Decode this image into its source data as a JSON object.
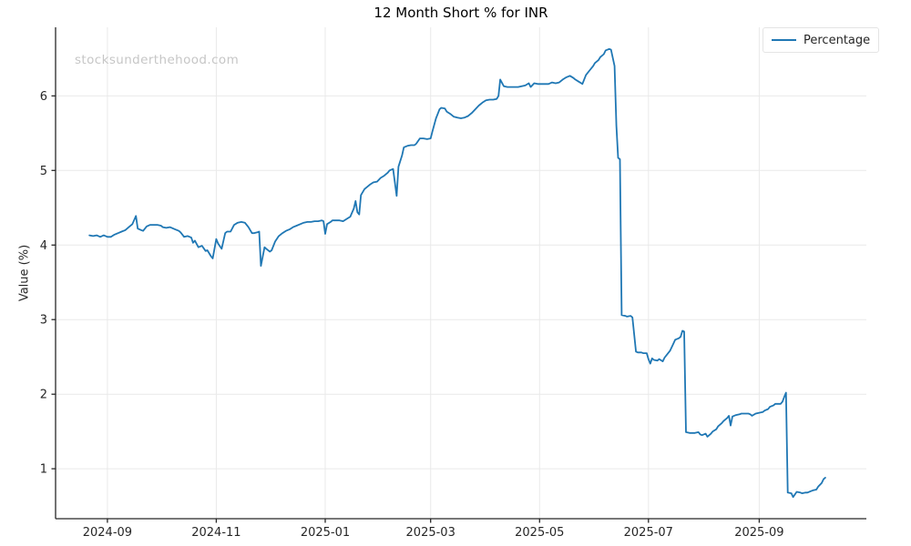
{
  "header": {
    "title": "12 Month Short % for INR"
  },
  "watermark": {
    "text": "stocksunderthehood.com"
  },
  "legend": {
    "items": [
      {
        "label": "Percentage",
        "color": "#1f77b4",
        "marker": "line"
      }
    ]
  },
  "chart_data": {
    "type": "line",
    "title": "12 Month Short % for INR",
    "xlabel": "",
    "ylabel": "Value (%)",
    "grid": true,
    "legend_position": "upper right",
    "x_domain": [
      "2024-08-03",
      "2025-10-31"
    ],
    "y_domain": [
      0.33,
      6.92
    ],
    "x_ticks": [
      {
        "date": "2024-09-01",
        "label": "2024-09"
      },
      {
        "date": "2024-11-01",
        "label": "2024-11"
      },
      {
        "date": "2025-01-01",
        "label": "2025-01"
      },
      {
        "date": "2025-03-01",
        "label": "2025-03"
      },
      {
        "date": "2025-05-01",
        "label": "2025-05"
      },
      {
        "date": "2025-07-01",
        "label": "2025-07"
      },
      {
        "date": "2025-09-01",
        "label": "2025-09"
      }
    ],
    "y_ticks": [
      1,
      2,
      3,
      4,
      5,
      6
    ],
    "colors": {
      "line": "#1f77b4",
      "grid": "#e9e9e9",
      "axis": "#262626",
      "tick_text": "#262626"
    },
    "series": [
      {
        "name": "Percentage",
        "color": "#1f77b4",
        "points": [
          [
            "2024-08-22",
            4.13
          ],
          [
            "2024-08-24",
            4.12
          ],
          [
            "2024-08-26",
            4.13
          ],
          [
            "2024-08-28",
            4.11
          ],
          [
            "2024-08-30",
            4.13
          ],
          [
            "2024-09-01",
            4.11
          ],
          [
            "2024-09-03",
            4.11
          ],
          [
            "2024-09-05",
            4.14
          ],
          [
            "2024-09-07",
            4.16
          ],
          [
            "2024-09-09",
            4.18
          ],
          [
            "2024-09-11",
            4.2
          ],
          [
            "2024-09-13",
            4.24
          ],
          [
            "2024-09-15",
            4.28
          ],
          [
            "2024-09-17",
            4.39
          ],
          [
            "2024-09-18",
            4.22
          ],
          [
            "2024-09-20",
            4.2
          ],
          [
            "2024-09-21",
            4.19
          ],
          [
            "2024-09-23",
            4.25
          ],
          [
            "2024-09-25",
            4.27
          ],
          [
            "2024-09-27",
            4.27
          ],
          [
            "2024-09-29",
            4.27
          ],
          [
            "2024-10-01",
            4.26
          ],
          [
            "2024-10-02",
            4.24
          ],
          [
            "2024-10-04",
            4.23
          ],
          [
            "2024-10-06",
            4.24
          ],
          [
            "2024-10-09",
            4.21
          ],
          [
            "2024-10-11",
            4.19
          ],
          [
            "2024-10-12",
            4.17
          ],
          [
            "2024-10-14",
            4.11
          ],
          [
            "2024-10-16",
            4.12
          ],
          [
            "2024-10-18",
            4.1
          ],
          [
            "2024-10-19",
            4.03
          ],
          [
            "2024-10-20",
            4.06
          ],
          [
            "2024-10-22",
            3.97
          ],
          [
            "2024-10-24",
            3.99
          ],
          [
            "2024-10-26",
            3.92
          ],
          [
            "2024-10-27",
            3.93
          ],
          [
            "2024-10-29",
            3.85
          ],
          [
            "2024-10-30",
            3.82
          ],
          [
            "2024-11-01",
            4.08
          ],
          [
            "2024-11-02",
            4.02
          ],
          [
            "2024-11-04",
            3.95
          ],
          [
            "2024-11-06",
            4.16
          ],
          [
            "2024-11-07",
            4.18
          ],
          [
            "2024-11-09",
            4.18
          ],
          [
            "2024-11-11",
            4.27
          ],
          [
            "2024-11-13",
            4.3
          ],
          [
            "2024-11-15",
            4.31
          ],
          [
            "2024-11-17",
            4.3
          ],
          [
            "2024-11-19",
            4.24
          ],
          [
            "2024-11-21",
            4.16
          ],
          [
            "2024-11-22",
            4.16
          ],
          [
            "2024-11-24",
            4.17
          ],
          [
            "2024-11-25",
            4.18
          ],
          [
            "2024-11-26",
            3.72
          ],
          [
            "2024-11-28",
            3.97
          ],
          [
            "2024-11-29",
            3.95
          ],
          [
            "2024-12-01",
            3.91
          ],
          [
            "2024-12-02",
            3.93
          ],
          [
            "2024-12-04",
            4.05
          ],
          [
            "2024-12-06",
            4.12
          ],
          [
            "2024-12-08",
            4.16
          ],
          [
            "2024-12-10",
            4.19
          ],
          [
            "2024-12-12",
            4.21
          ],
          [
            "2024-12-14",
            4.24
          ],
          [
            "2024-12-16",
            4.26
          ],
          [
            "2024-12-18",
            4.28
          ],
          [
            "2024-12-20",
            4.3
          ],
          [
            "2024-12-22",
            4.31
          ],
          [
            "2024-12-24",
            4.31
          ],
          [
            "2024-12-26",
            4.32
          ],
          [
            "2024-12-28",
            4.32
          ],
          [
            "2024-12-30",
            4.33
          ],
          [
            "2024-12-31",
            4.32
          ],
          [
            "2025-01-01",
            4.15
          ],
          [
            "2025-01-02",
            4.28
          ],
          [
            "2025-01-04",
            4.31
          ],
          [
            "2025-01-05",
            4.33
          ],
          [
            "2025-01-07",
            4.33
          ],
          [
            "2025-01-09",
            4.33
          ],
          [
            "2025-01-11",
            4.32
          ],
          [
            "2025-01-13",
            4.35
          ],
          [
            "2025-01-15",
            4.38
          ],
          [
            "2025-01-17",
            4.49
          ],
          [
            "2025-01-18",
            4.59
          ],
          [
            "2025-01-19",
            4.44
          ],
          [
            "2025-01-20",
            4.41
          ],
          [
            "2025-01-21",
            4.67
          ],
          [
            "2025-01-23",
            4.75
          ],
          [
            "2025-01-26",
            4.81
          ],
          [
            "2025-01-28",
            4.84
          ],
          [
            "2025-01-30",
            4.85
          ],
          [
            "2025-02-01",
            4.9
          ],
          [
            "2025-02-03",
            4.93
          ],
          [
            "2025-02-05",
            4.97
          ],
          [
            "2025-02-06",
            5.0
          ],
          [
            "2025-02-08",
            5.02
          ],
          [
            "2025-02-10",
            4.66
          ],
          [
            "2025-02-11",
            5.05
          ],
          [
            "2025-02-13",
            5.2
          ],
          [
            "2025-02-14",
            5.31
          ],
          [
            "2025-02-16",
            5.33
          ],
          [
            "2025-02-18",
            5.34
          ],
          [
            "2025-02-20",
            5.34
          ],
          [
            "2025-02-21",
            5.36
          ],
          [
            "2025-02-23",
            5.43
          ],
          [
            "2025-02-25",
            5.43
          ],
          [
            "2025-02-27",
            5.42
          ],
          [
            "2025-03-01",
            5.43
          ],
          [
            "2025-03-02",
            5.52
          ],
          [
            "2025-03-04",
            5.7
          ],
          [
            "2025-03-06",
            5.82
          ],
          [
            "2025-03-07",
            5.84
          ],
          [
            "2025-03-09",
            5.83
          ],
          [
            "2025-03-10",
            5.79
          ],
          [
            "2025-03-12",
            5.76
          ],
          [
            "2025-03-14",
            5.72
          ],
          [
            "2025-03-16",
            5.71
          ],
          [
            "2025-03-18",
            5.7
          ],
          [
            "2025-03-20",
            5.71
          ],
          [
            "2025-03-22",
            5.73
          ],
          [
            "2025-03-24",
            5.77
          ],
          [
            "2025-03-26",
            5.82
          ],
          [
            "2025-03-28",
            5.87
          ],
          [
            "2025-03-30",
            5.91
          ],
          [
            "2025-04-01",
            5.94
          ],
          [
            "2025-04-03",
            5.95
          ],
          [
            "2025-04-05",
            5.95
          ],
          [
            "2025-04-07",
            5.96
          ],
          [
            "2025-04-08",
            6.0
          ],
          [
            "2025-04-09",
            6.22
          ],
          [
            "2025-04-11",
            6.13
          ],
          [
            "2025-04-13",
            6.12
          ],
          [
            "2025-04-15",
            6.12
          ],
          [
            "2025-04-17",
            6.12
          ],
          [
            "2025-04-19",
            6.12
          ],
          [
            "2025-04-21",
            6.13
          ],
          [
            "2025-04-23",
            6.14
          ],
          [
            "2025-04-25",
            6.17
          ],
          [
            "2025-04-26",
            6.12
          ],
          [
            "2025-04-28",
            6.17
          ],
          [
            "2025-04-30",
            6.16
          ],
          [
            "2025-05-02",
            6.16
          ],
          [
            "2025-05-04",
            6.16
          ],
          [
            "2025-05-06",
            6.16
          ],
          [
            "2025-05-08",
            6.18
          ],
          [
            "2025-05-10",
            6.17
          ],
          [
            "2025-05-12",
            6.18
          ],
          [
            "2025-05-14",
            6.22
          ],
          [
            "2025-05-16",
            6.25
          ],
          [
            "2025-05-18",
            6.27
          ],
          [
            "2025-05-20",
            6.24
          ],
          [
            "2025-05-21",
            6.22
          ],
          [
            "2025-05-23",
            6.19
          ],
          [
            "2025-05-25",
            6.16
          ],
          [
            "2025-05-27",
            6.28
          ],
          [
            "2025-05-29",
            6.34
          ],
          [
            "2025-05-31",
            6.4
          ],
          [
            "2025-06-01",
            6.44
          ],
          [
            "2025-06-03",
            6.48
          ],
          [
            "2025-06-04",
            6.52
          ],
          [
            "2025-06-06",
            6.56
          ],
          [
            "2025-06-07",
            6.61
          ],
          [
            "2025-06-09",
            6.63
          ],
          [
            "2025-06-10",
            6.62
          ],
          [
            "2025-06-12",
            6.4
          ],
          [
            "2025-06-13",
            5.6
          ],
          [
            "2025-06-14",
            5.17
          ],
          [
            "2025-06-15",
            5.15
          ],
          [
            "2025-06-16",
            3.06
          ],
          [
            "2025-06-18",
            3.05
          ],
          [
            "2025-06-19",
            3.04
          ],
          [
            "2025-06-21",
            3.05
          ],
          [
            "2025-06-22",
            3.03
          ],
          [
            "2025-06-24",
            2.57
          ],
          [
            "2025-06-25",
            2.56
          ],
          [
            "2025-06-27",
            2.56
          ],
          [
            "2025-06-28",
            2.55
          ],
          [
            "2025-06-30",
            2.55
          ],
          [
            "2025-07-01",
            2.47
          ],
          [
            "2025-07-02",
            2.41
          ],
          [
            "2025-07-03",
            2.48
          ],
          [
            "2025-07-04",
            2.46
          ],
          [
            "2025-07-06",
            2.45
          ],
          [
            "2025-07-07",
            2.47
          ],
          [
            "2025-07-09",
            2.44
          ],
          [
            "2025-07-10",
            2.49
          ],
          [
            "2025-07-12",
            2.55
          ],
          [
            "2025-07-13",
            2.58
          ],
          [
            "2025-07-15",
            2.68
          ],
          [
            "2025-07-16",
            2.73
          ],
          [
            "2025-07-18",
            2.75
          ],
          [
            "2025-07-19",
            2.77
          ],
          [
            "2025-07-20",
            2.85
          ],
          [
            "2025-07-21",
            2.84
          ],
          [
            "2025-07-22",
            1.49
          ],
          [
            "2025-07-24",
            1.48
          ],
          [
            "2025-07-26",
            1.48
          ],
          [
            "2025-07-27",
            1.48
          ],
          [
            "2025-07-29",
            1.49
          ],
          [
            "2025-07-30",
            1.46
          ],
          [
            "2025-07-31",
            1.45
          ],
          [
            "2025-08-02",
            1.47
          ],
          [
            "2025-08-03",
            1.43
          ],
          [
            "2025-08-05",
            1.47
          ],
          [
            "2025-08-06",
            1.5
          ],
          [
            "2025-08-08",
            1.53
          ],
          [
            "2025-08-09",
            1.57
          ],
          [
            "2025-08-11",
            1.61
          ],
          [
            "2025-08-12",
            1.64
          ],
          [
            "2025-08-14",
            1.68
          ],
          [
            "2025-08-15",
            1.71
          ],
          [
            "2025-08-16",
            1.58
          ],
          [
            "2025-08-17",
            1.7
          ],
          [
            "2025-08-19",
            1.72
          ],
          [
            "2025-08-21",
            1.73
          ],
          [
            "2025-08-22",
            1.74
          ],
          [
            "2025-08-24",
            1.74
          ],
          [
            "2025-08-26",
            1.74
          ],
          [
            "2025-08-27",
            1.73
          ],
          [
            "2025-08-28",
            1.71
          ],
          [
            "2025-08-30",
            1.74
          ],
          [
            "2025-09-01",
            1.75
          ],
          [
            "2025-09-03",
            1.76
          ],
          [
            "2025-09-04",
            1.78
          ],
          [
            "2025-09-06",
            1.8
          ],
          [
            "2025-09-07",
            1.83
          ],
          [
            "2025-09-09",
            1.85
          ],
          [
            "2025-09-10",
            1.87
          ],
          [
            "2025-09-12",
            1.87
          ],
          [
            "2025-09-13",
            1.87
          ],
          [
            "2025-09-14",
            1.9
          ],
          [
            "2025-09-15",
            1.96
          ],
          [
            "2025-09-16",
            2.02
          ],
          [
            "2025-09-17",
            0.68
          ],
          [
            "2025-09-19",
            0.67
          ],
          [
            "2025-09-20",
            0.62
          ],
          [
            "2025-09-22",
            0.69
          ],
          [
            "2025-09-24",
            0.68
          ],
          [
            "2025-09-25",
            0.67
          ],
          [
            "2025-09-27",
            0.68
          ],
          [
            "2025-09-28",
            0.68
          ],
          [
            "2025-09-30",
            0.7
          ],
          [
            "2025-10-01",
            0.71
          ],
          [
            "2025-10-03",
            0.72
          ],
          [
            "2025-10-04",
            0.76
          ],
          [
            "2025-10-06",
            0.81
          ],
          [
            "2025-10-07",
            0.86
          ],
          [
            "2025-10-08",
            0.88
          ]
        ]
      }
    ]
  }
}
